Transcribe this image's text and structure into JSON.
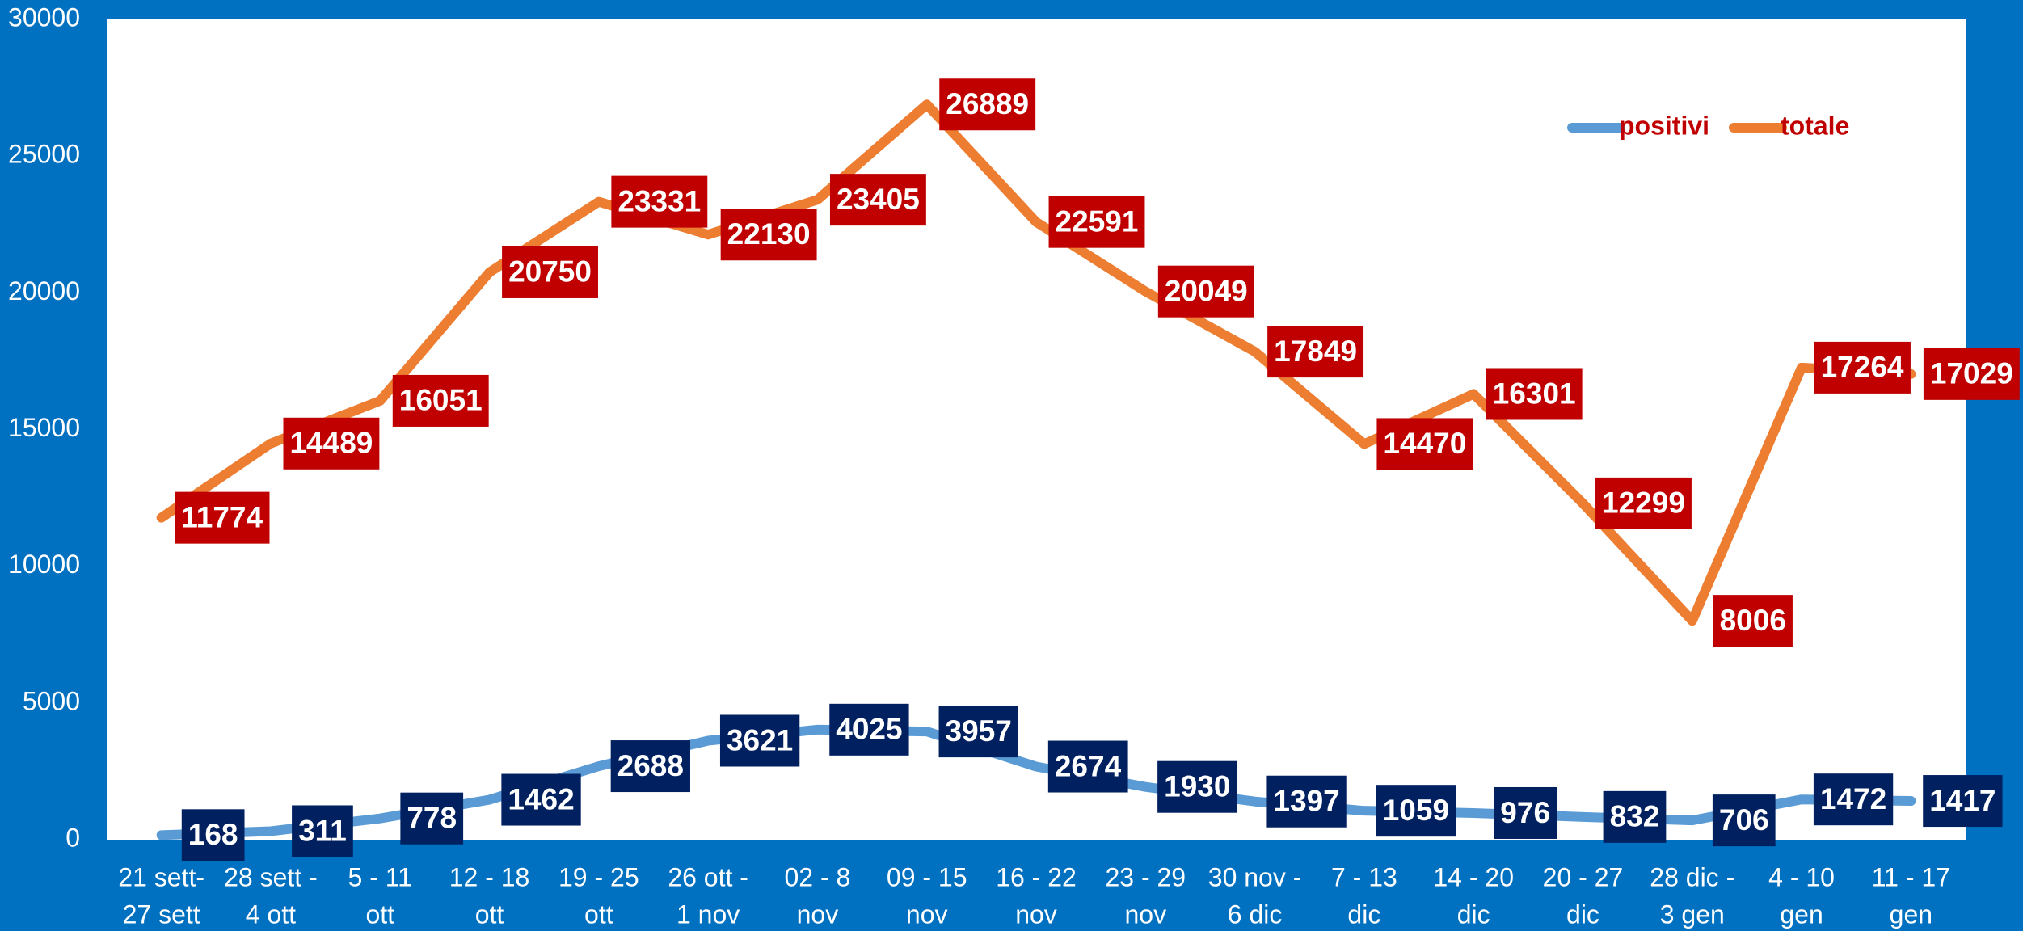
{
  "chart_data": {
    "type": "line",
    "categories": [
      [
        "21 sett-",
        "27 sett"
      ],
      [
        "28 sett -",
        "4 ott"
      ],
      [
        "5 - 11",
        "ott"
      ],
      [
        "12 - 18",
        "ott"
      ],
      [
        "19 - 25",
        "ott"
      ],
      [
        "26 ott -",
        "1 nov"
      ],
      [
        "02 - 8",
        "nov"
      ],
      [
        "09 - 15",
        "nov"
      ],
      [
        "16 - 22",
        "nov"
      ],
      [
        "23 - 29",
        "nov"
      ],
      [
        "30 nov -",
        "6 dic"
      ],
      [
        "7 - 13",
        "dic"
      ],
      [
        "14 - 20",
        "dic"
      ],
      [
        "20 - 27",
        "dic"
      ],
      [
        "28 dic -",
        "3 gen"
      ],
      [
        "4 - 10",
        "gen"
      ],
      [
        "11 - 17",
        "gen"
      ]
    ],
    "series": [
      {
        "name": "positivi",
        "color": "#5b9bd5",
        "label_color": "#002060",
        "values": [
          168,
          311,
          778,
          1462,
          2688,
          3621,
          4025,
          3957,
          2674,
          1930,
          1397,
          1059,
          976,
          832,
          706,
          1472,
          1417
        ]
      },
      {
        "name": "totale",
        "color": "#ed7d31",
        "label_color": "#c00000",
        "values": [
          11774,
          14489,
          16051,
          20750,
          23331,
          22130,
          23405,
          26889,
          22591,
          20049,
          17849,
          14470,
          16301,
          12299,
          8006,
          17264,
          17029
        ]
      }
    ],
    "ylim": [
      0,
      30000
    ],
    "yticks": [
      0,
      5000,
      10000,
      15000,
      20000,
      25000,
      30000
    ],
    "grid": false,
    "legend": "top-right",
    "legend_color": "#c00000"
  }
}
